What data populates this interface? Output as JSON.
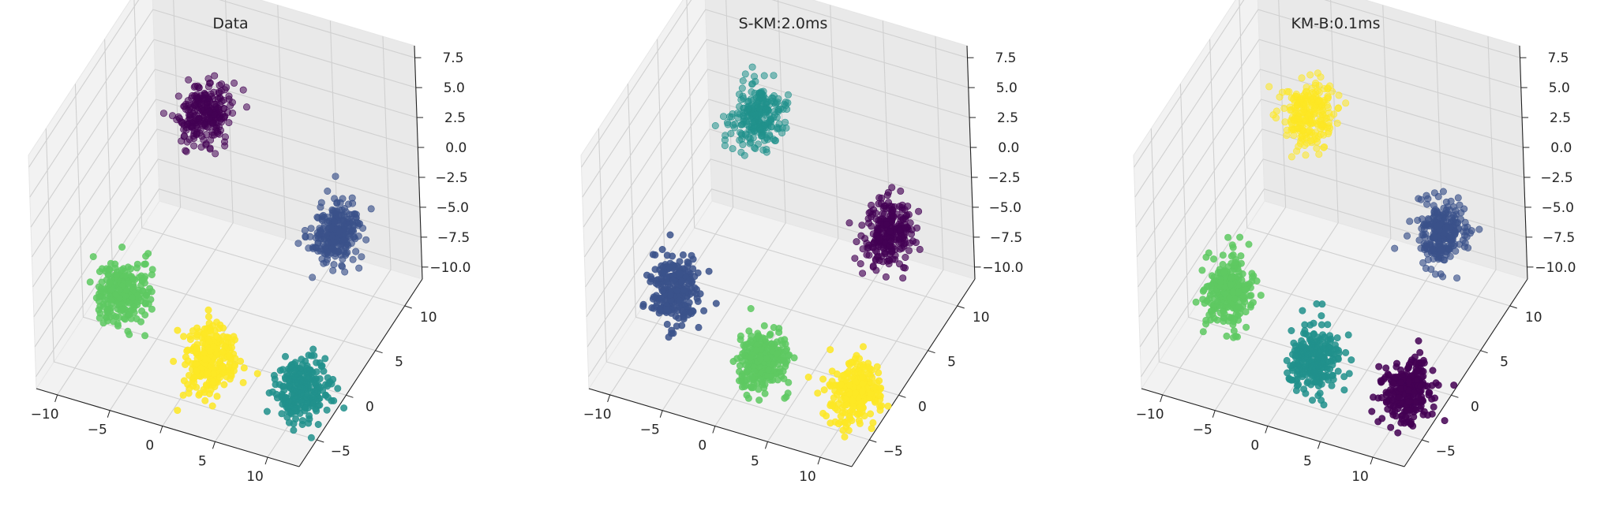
{
  "chart_data": [
    {
      "type": "scatter",
      "projection": "3d",
      "title": "Data",
      "xlabel": "",
      "ylabel": "",
      "zlabel": "",
      "x_ticks": [
        "−10",
        "−5",
        "0",
        "5",
        "10"
      ],
      "y_ticks": [
        "−5",
        "0",
        "5",
        "10"
      ],
      "z_ticks": [
        "−10.0",
        "−7.5",
        "−5.0",
        "−2.5",
        "0.0",
        "2.5",
        "5.0",
        "7.5"
      ],
      "xlim": [
        -12,
        13
      ],
      "ylim": [
        -8,
        13
      ],
      "zlim": [
        -11,
        8.5
      ],
      "grid": true,
      "clusters": [
        {
          "name": "cluster-purple",
          "color": "#440154",
          "center": [
            -5,
            9,
            1
          ]
        },
        {
          "name": "cluster-blue",
          "color": "#3b528b",
          "center": [
            9,
            6,
            -3
          ]
        },
        {
          "name": "cluster-green",
          "color": "#5ec962",
          "center": [
            -7,
            -2,
            -6
          ]
        },
        {
          "name": "cluster-yellow",
          "color": "#fde725",
          "center": [
            3,
            -5,
            -7
          ]
        },
        {
          "name": "cluster-teal",
          "color": "#21918c",
          "center": [
            10,
            -2,
            -10
          ]
        }
      ]
    },
    {
      "type": "scatter",
      "projection": "3d",
      "title": "S-KM:2.0ms",
      "xlabel": "",
      "ylabel": "",
      "zlabel": "",
      "x_ticks": [
        "−10",
        "−5",
        "0",
        "5",
        "10"
      ],
      "y_ticks": [
        "−5",
        "0",
        "5",
        "10"
      ],
      "z_ticks": [
        "−10.0",
        "−7.5",
        "−5.0",
        "−2.5",
        "0.0",
        "2.5",
        "5.0",
        "7.5"
      ],
      "xlim": [
        -12,
        13
      ],
      "ylim": [
        -8,
        13
      ],
      "zlim": [
        -11,
        8.5
      ],
      "grid": true,
      "clusters": [
        {
          "name": "cluster-teal",
          "color": "#21918c",
          "center": [
            -5,
            9,
            1
          ]
        },
        {
          "name": "cluster-purple",
          "color": "#440154",
          "center": [
            9,
            6,
            -3
          ]
        },
        {
          "name": "cluster-blue",
          "color": "#3b528b",
          "center": [
            -7,
            -2,
            -6
          ]
        },
        {
          "name": "cluster-green",
          "color": "#5ec962",
          "center": [
            3,
            -5,
            -7
          ]
        },
        {
          "name": "cluster-yellow",
          "color": "#fde725",
          "center": [
            10,
            -2,
            -10
          ]
        }
      ]
    },
    {
      "type": "scatter",
      "projection": "3d",
      "title": "KM-B:0.1ms",
      "xlabel": "",
      "ylabel": "",
      "zlabel": "",
      "x_ticks": [
        "−10",
        "−5",
        "0",
        "5",
        "10"
      ],
      "y_ticks": [
        "−5",
        "0",
        "5",
        "10"
      ],
      "z_ticks": [
        "−10.0",
        "−7.5",
        "−5.0",
        "−2.5",
        "0.0",
        "2.5",
        "5.0",
        "7.5"
      ],
      "xlim": [
        -12,
        13
      ],
      "ylim": [
        -8,
        13
      ],
      "zlim": [
        -11,
        8.5
      ],
      "grid": true,
      "clusters": [
        {
          "name": "cluster-yellow",
          "color": "#fde725",
          "center": [
            -5,
            9,
            1
          ]
        },
        {
          "name": "cluster-blue",
          "color": "#3b528b",
          "center": [
            9,
            6,
            -3
          ]
        },
        {
          "name": "cluster-green",
          "color": "#5ec962",
          "center": [
            -7,
            -2,
            -6
          ]
        },
        {
          "name": "cluster-teal",
          "color": "#21918c",
          "center": [
            3,
            -5,
            -7
          ]
        },
        {
          "name": "cluster-purple",
          "color": "#440154",
          "center": [
            10,
            -2,
            -10
          ]
        }
      ]
    }
  ]
}
